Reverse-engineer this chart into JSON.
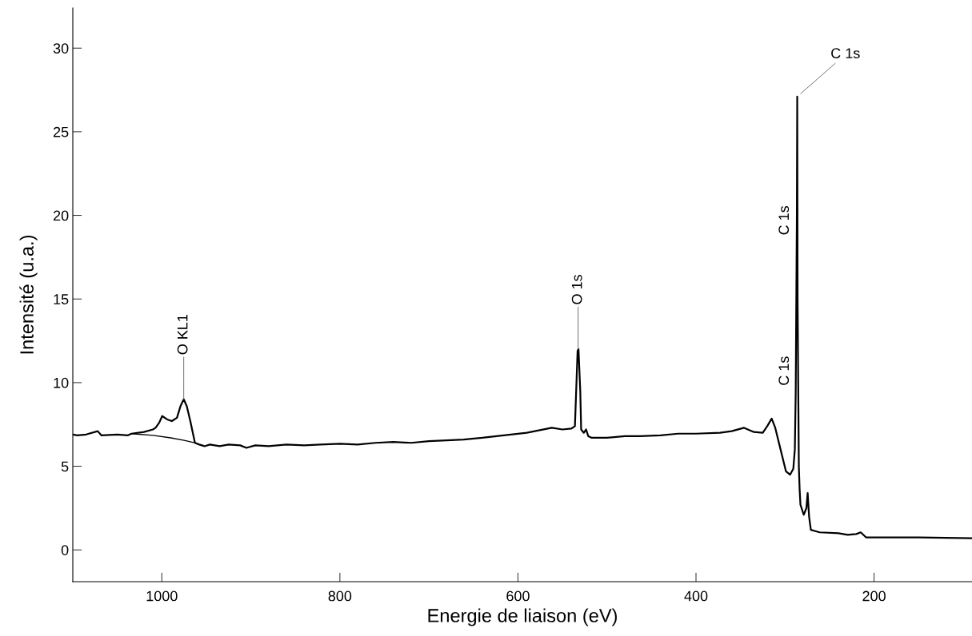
{
  "chart_data": {
    "type": "line",
    "xlabel": "Energie de liaison (eV)",
    "ylabel": "Intensité (u.a.)",
    "xlim": [
      1100,
      90
    ],
    "ylim": [
      -1.9,
      32.4
    ],
    "xticks": [
      1000,
      800,
      600,
      400,
      200
    ],
    "yticks": [
      0,
      5,
      10,
      15,
      20,
      25,
      30
    ],
    "grid": false,
    "legend": false,
    "marker": "none",
    "line_style": "solid",
    "series": [
      {
        "color": "#000000",
        "x": [
          1100,
          1095,
          1085,
          1072,
          1068,
          1050,
          1038,
          1034,
          1020,
          1010,
          1007,
          1003,
          999.6,
          994,
          988.8,
          983,
          979,
          975.4,
          972,
          968,
          964,
          962.8,
          958,
          952,
          946,
          935,
          925,
          912,
          905,
          895,
          880,
          860,
          840,
          822,
          800,
          780,
          760,
          740,
          720,
          700,
          680,
          661,
          640,
          616,
          590,
          562,
          550,
          540,
          536,
          533,
          532,
          530,
          529,
          526,
          523.5,
          521,
          517,
          500,
          480,
          463,
          440,
          420,
          400,
          373,
          360,
          346,
          335,
          325,
          320,
          315,
          311,
          305,
          299,
          294.3,
          290.7,
          289,
          288,
          286.7,
          286.3,
          285.9,
          284.5,
          283.6,
          282.7,
          279,
          276,
          274.6,
          273,
          271,
          261,
          240,
          229.6,
          220,
          215,
          209,
          180,
          149,
          120,
          90.4
        ],
        "values": [
          6.9,
          6.85,
          6.9,
          7.1,
          6.85,
          6.9,
          6.85,
          6.95,
          7.05,
          7.2,
          7.3,
          7.6,
          8.0,
          7.8,
          7.7,
          7.9,
          8.6,
          9.0,
          8.6,
          7.7,
          6.7,
          6.4,
          6.3,
          6.2,
          6.3,
          6.2,
          6.3,
          6.25,
          6.1,
          6.25,
          6.2,
          6.3,
          6.25,
          6.3,
          6.35,
          6.3,
          6.4,
          6.45,
          6.4,
          6.5,
          6.55,
          6.6,
          6.7,
          6.85,
          7.0,
          7.3,
          7.2,
          7.25,
          7.4,
          11.9,
          12.0,
          9.5,
          7.2,
          7.0,
          7.2,
          6.8,
          6.7,
          6.7,
          6.8,
          6.8,
          6.85,
          6.95,
          6.95,
          7.0,
          7.1,
          7.3,
          7.05,
          7.0,
          7.4,
          7.85,
          7.3,
          6.0,
          4.7,
          4.5,
          4.85,
          6.0,
          9.5,
          20.0,
          27.1,
          15.0,
          5.0,
          3.6,
          2.7,
          2.1,
          2.5,
          3.4,
          2.0,
          1.2,
          1.05,
          1.0,
          0.9,
          0.95,
          1.05,
          0.75,
          0.75,
          0.75,
          0.72,
          0.7
        ]
      },
      {
        "color": "#000000",
        "x": [
          1034,
          1010,
          990,
          975,
          962.8
        ],
        "values": [
          6.95,
          6.85,
          6.7,
          6.55,
          6.4
        ]
      }
    ],
    "annotations": [
      {
        "text": "O KL1",
        "x": 975.4,
        "y": 9.0
      },
      {
        "text": "O 1s",
        "x": 532.4,
        "y": 12.0
      },
      {
        "text": "C 1s",
        "x": 286.3,
        "y": 27.1
      },
      "C 1s",
      "C 1s"
    ]
  }
}
